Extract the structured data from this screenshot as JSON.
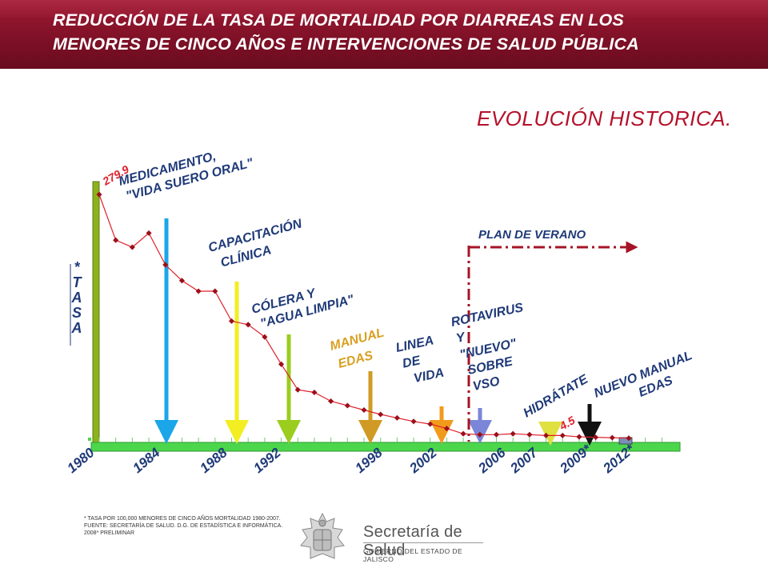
{
  "header": {
    "title_line1": "REDUCCIÓN DE LA TASA DE MORTALIDAD POR DIARREAS EN LOS",
    "title_line2": "MENORES DE CINCO AÑOS E INTERVENCIONES DE SALUD PÚBLICA"
  },
  "section_title": "EVOLUCIÓN  HISTORICA.",
  "colors": {
    "header": "#8a1228",
    "line": "#e0202a",
    "marker": "#9b0f1a",
    "axis": "#4cd64c",
    "title": "#b5102a",
    "label": "#1f3a78",
    "plan_verano": "#a51426"
  },
  "chart_data": {
    "type": "line",
    "y_axis_label": "* TASA",
    "ylim": [
      0,
      280
    ],
    "x_ticks": [
      "1980",
      "1984",
      "1988",
      "1992",
      "1998",
      "2002",
      "2006",
      "2007",
      "2009*",
      "2012*"
    ],
    "series": [
      {
        "values": [
          {
            "x": 1980,
            "y": 279.9
          },
          {
            "x": 1981,
            "y": 228
          },
          {
            "x": 1982,
            "y": 220
          },
          {
            "x": 1983,
            "y": 236
          },
          {
            "x": 1984,
            "y": 200
          },
          {
            "x": 1985,
            "y": 182
          },
          {
            "x": 1986,
            "y": 170
          },
          {
            "x": 1987,
            "y": 170
          },
          {
            "x": 1988,
            "y": 136
          },
          {
            "x": 1989,
            "y": 132
          },
          {
            "x": 1990,
            "y": 118
          },
          {
            "x": 1991,
            "y": 87
          },
          {
            "x": 1992,
            "y": 58
          },
          {
            "x": 1993,
            "y": 55
          },
          {
            "x": 1994,
            "y": 45
          },
          {
            "x": 1995,
            "y": 40
          },
          {
            "x": 1996,
            "y": 35
          },
          {
            "x": 1997,
            "y": 30
          },
          {
            "x": 1998,
            "y": 26
          },
          {
            "x": 1999,
            "y": 22
          },
          {
            "x": 2000,
            "y": 19
          },
          {
            "x": 2001,
            "y": 14
          },
          {
            "x": 2002,
            "y": 8
          },
          {
            "x": 2003,
            "y": 7
          },
          {
            "x": 2004,
            "y": 7
          },
          {
            "x": 2005,
            "y": 8
          },
          {
            "x": 2006,
            "y": 7
          },
          {
            "x": 2007,
            "y": 6
          },
          {
            "x": 2008,
            "y": 6
          },
          {
            "x": 2009,
            "y": 4.5
          },
          {
            "x": 2010,
            "y": 4
          },
          {
            "x": 2011,
            "y": 3.5
          },
          {
            "x": 2012,
            "y": 3
          }
        ]
      }
    ],
    "data_labels": [
      {
        "x": 1980,
        "y": 279.9,
        "text": "279.9"
      },
      {
        "x": 2009,
        "y": 4.5,
        "text": "4.5"
      }
    ],
    "interventions": [
      {
        "year": 1984,
        "color": "#1aa6e8",
        "text_lines": [
          "MEDICAMENTO,",
          "\"VIDA SUERO ORAL\""
        ]
      },
      {
        "year": 1988,
        "color": "#f2ee22",
        "text_lines": [
          "CAPACITACIÓN",
          "CLÍNICA"
        ]
      },
      {
        "year": 1992,
        "color": "#9acd1e",
        "text_lines": [
          "CÓLERA Y",
          "\"AGUA LIMPIA\""
        ]
      },
      {
        "year": 1998,
        "color": "#d09a24",
        "text_lines": [
          "MANUAL",
          "EDAS"
        ]
      },
      {
        "year": 2002,
        "color": "#f29a1c",
        "text_lines": [
          "LINEA",
          "DE",
          "VIDA"
        ]
      },
      {
        "year": 2004.5,
        "color": "#7b86d8",
        "text_lines": [
          "ROTAVIRUS",
          "Y",
          "\"NUEVO\"",
          "SOBRE",
          "VSO"
        ]
      },
      {
        "year": 2009,
        "color": "#e0e040",
        "text_lines": [
          "HIDRÁTATE"
        ]
      },
      {
        "year": 2011,
        "color": "#111111",
        "text_lines": [
          "NUEVO MANUAL",
          "EDAS"
        ]
      }
    ],
    "plan_verano": {
      "year": 2003.5,
      "label": "PLAN DE VERANO"
    }
  },
  "footnote": {
    "line1": "* TASA POR 100,000 MENORES DE CINCO AÑOS MORTALIDAD 1980-2007.",
    "line2": "FUENTE: SECRETARÍA DE SALUD. D.G. DE ESTADÍSTICA E INFORMÁTICA.",
    "line3": "2008* PRELIMINAR"
  },
  "logo": {
    "name": "Secretaría de Salud",
    "subtitle": "GOBIERNO DEL ESTADO DE JALISCO"
  }
}
